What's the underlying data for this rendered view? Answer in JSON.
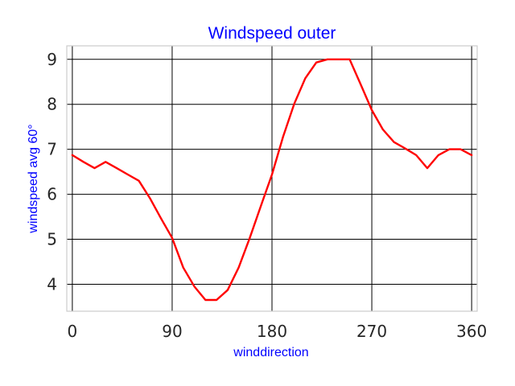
{
  "chart_data": {
    "type": "line",
    "title": "Windspeed outer",
    "xlabel": "winddirection",
    "ylabel": "windspeed avg 60°",
    "xlim": [
      -5,
      365
    ],
    "ylim": [
      3.4,
      9.3
    ],
    "xticks": [
      0,
      90,
      180,
      270,
      360
    ],
    "yticks": [
      4,
      5,
      6,
      7,
      8,
      9
    ],
    "grid": true,
    "series": [
      {
        "color": "#ff0000",
        "x": [
          0,
          10,
          20,
          30,
          40,
          50,
          60,
          70,
          80,
          90,
          100,
          110,
          120,
          130,
          140,
          150,
          160,
          170,
          180,
          190,
          200,
          210,
          220,
          230,
          240,
          250,
          260,
          270,
          280,
          290,
          300,
          310,
          320,
          330,
          340,
          350,
          360
        ],
        "y": [
          6.87,
          6.72,
          6.58,
          6.72,
          6.58,
          6.44,
          6.3,
          5.91,
          5.46,
          5.03,
          4.37,
          3.95,
          3.65,
          3.65,
          3.87,
          4.37,
          5.03,
          5.74,
          6.44,
          7.28,
          8.01,
          8.58,
          8.93,
          9.0,
          9.0,
          9.0,
          8.44,
          7.87,
          7.44,
          7.16,
          7.02,
          6.87,
          6.58,
          6.87,
          7.0,
          7.0,
          6.87
        ]
      }
    ]
  }
}
